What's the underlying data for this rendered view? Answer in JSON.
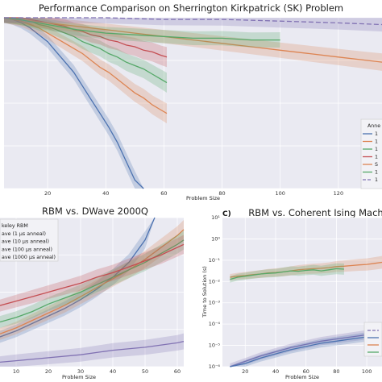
{
  "chart_data": [
    {
      "type": "line",
      "title": "Performance Comparison on Sherrington Kirkpatrick (SK) Problem",
      "xlabel": "Problem Size",
      "ylabel": "",
      "x_ticks": [
        "20",
        "40",
        "60",
        "80",
        "100",
        "120"
      ],
      "xlim": [
        5,
        135
      ],
      "ylim": [
        0,
        1
      ],
      "legend_title": "Anne",
      "legend_position": "right",
      "legend_entries": [
        "1",
        "1",
        "1",
        "1",
        "S",
        "1",
        "1"
      ],
      "colors": {
        "blue": "#4c72b0",
        "orange": "#dd8452",
        "green": "#55a868",
        "red": "#c44e52",
        "purple": "#8172b3"
      },
      "series": [
        {
          "color": "blue",
          "x": [
            5,
            8,
            11,
            14,
            17,
            20,
            23,
            26,
            29,
            32,
            35,
            38,
            41,
            44,
            47,
            50,
            53
          ],
          "y": [
            1,
            0.99,
            0.97,
            0.94,
            0.9,
            0.86,
            0.8,
            0.74,
            0.68,
            0.6,
            0.52,
            0.44,
            0.36,
            0.27,
            0.16,
            0.05,
            -0.1
          ]
        },
        {
          "color": "orange",
          "x": [
            5,
            8,
            11,
            14,
            17,
            20,
            23,
            26,
            29,
            32,
            35,
            38,
            41,
            44,
            47,
            50,
            53,
            56,
            59,
            61
          ],
          "y": [
            1,
            0.99,
            0.98,
            0.96,
            0.94,
            0.91,
            0.88,
            0.85,
            0.82,
            0.79,
            0.75,
            0.71,
            0.68,
            0.64,
            0.6,
            0.56,
            0.53,
            0.49,
            0.46,
            0.44
          ]
        },
        {
          "color": "green",
          "x": [
            5,
            8,
            11,
            14,
            17,
            20,
            23,
            26,
            29,
            32,
            35,
            38,
            41,
            44,
            47,
            50,
            53,
            56,
            59,
            61
          ],
          "y": [
            1,
            1,
            0.99,
            0.98,
            0.96,
            0.95,
            0.93,
            0.91,
            0.89,
            0.86,
            0.84,
            0.82,
            0.79,
            0.77,
            0.74,
            0.72,
            0.7,
            0.67,
            0.64,
            0.62
          ]
        },
        {
          "color": "red",
          "x": [
            5,
            8,
            11,
            14,
            17,
            20,
            23,
            26,
            29,
            32,
            35,
            38,
            41,
            44,
            47,
            50,
            53,
            56,
            59,
            61
          ],
          "y": [
            1,
            1,
            1,
            0.99,
            0.98,
            0.97,
            0.96,
            0.95,
            0.93,
            0.92,
            0.9,
            0.89,
            0.87,
            0.86,
            0.84,
            0.83,
            0.81,
            0.8,
            0.78,
            0.77
          ]
        },
        {
          "color": "orange",
          "x": [
            5,
            10,
            20,
            30,
            40,
            50,
            60,
            70,
            80,
            90,
            100,
            110,
            120,
            130,
            135
          ],
          "y": [
            1,
            0.99,
            0.97,
            0.95,
            0.93,
            0.91,
            0.89,
            0.87,
            0.85,
            0.83,
            0.81,
            0.79,
            0.77,
            0.75,
            0.74
          ]
        },
        {
          "color": "green",
          "x": [
            5,
            10,
            20,
            30,
            40,
            50,
            60,
            70,
            80,
            90,
            100
          ],
          "y": [
            1,
            0.99,
            0.96,
            0.93,
            0.91,
            0.9,
            0.89,
            0.88,
            0.88,
            0.87,
            0.87
          ]
        },
        {
          "color": "purple",
          "x": [
            5,
            20,
            40,
            60,
            80,
            100,
            120,
            135
          ],
          "y": [
            1,
            1,
            1,
            0.99,
            0.99,
            0.98,
            0.97,
            0.96
          ]
        }
      ]
    },
    {
      "type": "line",
      "title": "RBM vs. DWave 2000Q",
      "xlabel": "Problem Size",
      "ylabel": "",
      "x_ticks": [
        "10",
        "20",
        "30",
        "40",
        "50",
        "60"
      ],
      "xlim": [
        5,
        62
      ],
      "ylim": [
        0,
        1
      ],
      "legend_position": "top-left",
      "legend_entries": [
        "keley RBM",
        "ave (1 μs anneal)",
        "ave (10 μs anneal)",
        "ave (100 μs anneal)",
        "ave (1000 μs anneal)"
      ],
      "series": [
        {
          "color": "purple",
          "x": [
            5,
            10,
            20,
            30,
            40,
            50,
            60,
            62
          ],
          "y": [
            0.03,
            0.04,
            0.06,
            0.08,
            0.11,
            0.13,
            0.16,
            0.17
          ]
        },
        {
          "color": "blue",
          "x": [
            5,
            10,
            15,
            20,
            25,
            30,
            35,
            40,
            45,
            50,
            53
          ],
          "y": [
            0.2,
            0.24,
            0.29,
            0.34,
            0.39,
            0.45,
            0.52,
            0.6,
            0.7,
            0.85,
            1.3
          ]
        },
        {
          "color": "orange",
          "x": [
            5,
            10,
            15,
            20,
            25,
            30,
            35,
            40,
            45,
            50,
            55,
            60,
            62
          ],
          "y": [
            0.22,
            0.26,
            0.31,
            0.36,
            0.41,
            0.47,
            0.53,
            0.59,
            0.65,
            0.72,
            0.8,
            0.88,
            0.92
          ]
        },
        {
          "color": "green",
          "x": [
            5,
            10,
            15,
            20,
            25,
            30,
            35,
            40,
            45,
            50,
            55,
            60,
            62
          ],
          "y": [
            0.3,
            0.33,
            0.37,
            0.42,
            0.46,
            0.5,
            0.55,
            0.6,
            0.65,
            0.7,
            0.76,
            0.82,
            0.85
          ]
        },
        {
          "color": "red",
          "x": [
            5,
            10,
            15,
            20,
            25,
            30,
            35,
            40,
            45,
            50,
            55,
            60,
            62
          ],
          "y": [
            0.41,
            0.44,
            0.47,
            0.5,
            0.53,
            0.56,
            0.6,
            0.63,
            0.67,
            0.71,
            0.75,
            0.8,
            0.82
          ]
        }
      ]
    },
    {
      "type": "line",
      "panel_label": "C)",
      "title": "RBM vs. Coherent Ising Mach",
      "xlabel": "Problem Size",
      "ylabel": "Time to Solution (s)",
      "y_scale": "log",
      "x_ticks": [
        "20",
        "40",
        "60",
        "80",
        "100"
      ],
      "y_ticks": [
        "10⁻⁶",
        "10⁻⁵",
        "10⁻⁴",
        "10⁻³",
        "10⁻²",
        "10⁻¹",
        "10⁰",
        "10¹"
      ],
      "xlim": [
        5,
        110
      ],
      "ylim": [
        -6,
        1
      ],
      "legend_position": "bottom-right",
      "series": [
        {
          "color": "orange",
          "x": [
            10,
            15,
            20,
            25,
            30,
            35,
            40,
            45,
            50,
            55,
            60,
            65,
            70,
            75,
            80,
            85,
            90,
            95,
            100,
            105,
            110
          ],
          "y": [
            -1.8,
            -1.75,
            -1.72,
            -1.68,
            -1.65,
            -1.6,
            -1.58,
            -1.55,
            -1.5,
            -1.45,
            -1.42,
            -1.4,
            -1.38,
            -1.35,
            -1.3,
            -1.28,
            -1.25,
            -1.22,
            -1.2,
            -1.15,
            -1.1
          ]
        },
        {
          "color": "green",
          "x": [
            10,
            15,
            20,
            25,
            30,
            35,
            40,
            45,
            50,
            55,
            60,
            65,
            70,
            75,
            80,
            85
          ],
          "y": [
            -1.9,
            -1.8,
            -1.75,
            -1.7,
            -1.65,
            -1.62,
            -1.6,
            -1.55,
            -1.5,
            -1.52,
            -1.48,
            -1.45,
            -1.5,
            -1.45,
            -1.4,
            -1.42
          ]
        },
        {
          "color": "purple",
          "x": [
            10,
            20,
            30,
            40,
            50,
            60,
            70,
            80,
            90,
            100,
            110
          ],
          "y": [
            -6,
            -5.75,
            -5.5,
            -5.3,
            -5.1,
            -4.95,
            -4.8,
            -4.7,
            -4.6,
            -4.5,
            -4.42
          ]
        },
        {
          "color": "blue",
          "x": [
            10,
            20,
            30,
            40,
            50,
            60,
            70,
            80,
            90,
            100
          ],
          "y": [
            -6.1,
            -5.85,
            -5.6,
            -5.4,
            -5.2,
            -5.05,
            -4.9,
            -4.8,
            -4.7,
            -4.6
          ]
        }
      ]
    }
  ]
}
